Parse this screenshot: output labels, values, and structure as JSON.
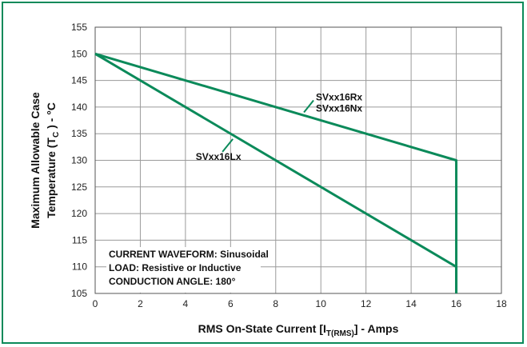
{
  "chart_data": {
    "type": "line",
    "title": "",
    "xlabel": {
      "main": "RMS On-State Current [I",
      "sub": "T(RMS)",
      "tail": "] - Amps"
    },
    "ylabel": {
      "line1": "Maximum Allowable Case",
      "line2_pre": "Temperature (T",
      "line2_sub": "C",
      "line2_post": " ) - °C"
    },
    "xlim": [
      0,
      18
    ],
    "ylim": [
      105,
      155
    ],
    "xticks": [
      "0",
      "2",
      "4",
      "6",
      "8",
      "10",
      "12",
      "14",
      "16",
      "18"
    ],
    "yticks": [
      "105",
      "110",
      "115",
      "120",
      "125",
      "130",
      "135",
      "140",
      "145",
      "150",
      "155"
    ],
    "grid": true,
    "line_color": "#0b8a5a",
    "series": [
      {
        "name": "SVxx16Rx / SVxx16Nx",
        "x": [
          0,
          16,
          16
        ],
        "y": [
          150,
          130,
          105
        ]
      },
      {
        "name": "SVxx16Lx",
        "x": [
          0,
          16,
          16
        ],
        "y": [
          150,
          110,
          105
        ]
      }
    ],
    "series_labels": [
      {
        "lines": [
          "SVxx16Rx",
          "SVxx16Nx"
        ],
        "anchor_x": 9.25,
        "anchor_y": 139
      },
      {
        "lines": [
          "SVxx16Lx"
        ],
        "anchor_x": 6.1,
        "anchor_y": 134
      }
    ],
    "annotation": [
      "CURRENT WAVEFORM: Sinusoidal",
      "LOAD: Resistive or Inductive",
      "CONDUCTION ANGLE: 180°"
    ]
  }
}
